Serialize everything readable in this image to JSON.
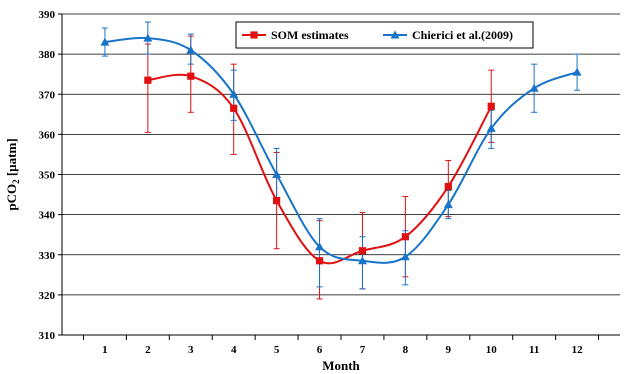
{
  "chart_data": {
    "type": "line",
    "title": "",
    "xlabel": "Month",
    "ylabel_parts": {
      "pre": "pCO",
      "sub": "2",
      "post": " [µatm]"
    },
    "x": [
      1,
      2,
      3,
      4,
      5,
      6,
      7,
      8,
      9,
      10,
      11,
      12
    ],
    "xlim": [
      0,
      13
    ],
    "ylim": [
      310,
      390
    ],
    "yticks": [
      310,
      320,
      330,
      340,
      350,
      360,
      370,
      380,
      390
    ],
    "grid": "horizontal",
    "legend_position": "top-right",
    "series": [
      {
        "name": "SOM estimates",
        "color": "#e01010",
        "marker": "square",
        "x": [
          2,
          3,
          4,
          5,
          6,
          7,
          8,
          9,
          10
        ],
        "values": [
          373.5,
          374.5,
          366.5,
          343.5,
          328.5,
          331.0,
          334.5,
          347.0,
          367.0
        ],
        "err_low": [
          13.0,
          9.0,
          11.5,
          12.0,
          9.5,
          9.5,
          10.0,
          7.5,
          9.0
        ],
        "err_high": [
          9.0,
          10.0,
          11.0,
          12.0,
          10.0,
          9.5,
          10.0,
          6.5,
          9.0
        ]
      },
      {
        "name": "Chierici et al.(2009)",
        "color": "#1874c8",
        "marker": "triangle",
        "x": [
          1,
          2,
          3,
          4,
          5,
          6,
          7,
          8,
          9,
          10,
          11,
          12
        ],
        "values": [
          383.0,
          384.0,
          381.0,
          370.0,
          350.0,
          332.0,
          328.5,
          329.5,
          342.5,
          361.5,
          371.5,
          375.5
        ],
        "err_low": [
          3.5,
          4.0,
          3.5,
          6.5,
          6.0,
          10.0,
          7.0,
          7.0,
          3.5,
          5.0,
          6.0,
          4.5
        ],
        "err_high": [
          3.5,
          4.0,
          4.0,
          6.0,
          6.5,
          7.0,
          6.0,
          6.5,
          3.5,
          4.5,
          6.0,
          4.5
        ]
      }
    ]
  }
}
